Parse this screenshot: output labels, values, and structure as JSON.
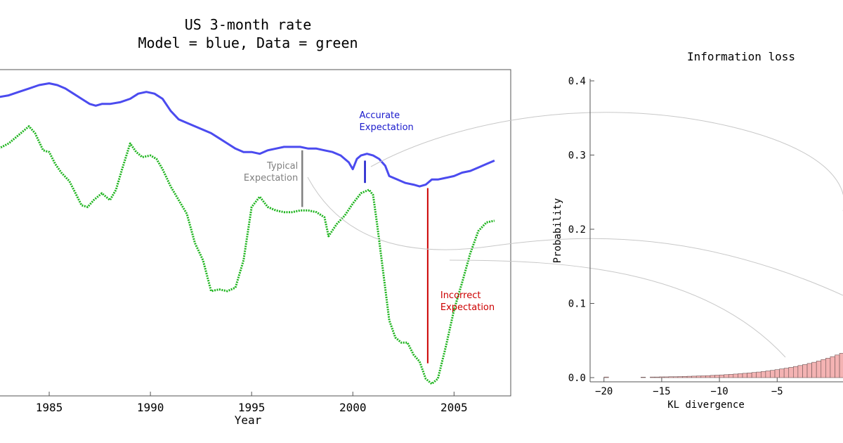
{
  "chart_data": [
    {
      "type": "line",
      "title": "US 3-month rate",
      "subtitle": "Model = blue, Data = green",
      "xlabel": "Year",
      "ylabel": "",
      "xlim": [
        1982.5,
        2007.8
      ],
      "ylim": [
        0,
        9.5
      ],
      "xticks": [
        1985,
        1990,
        1995,
        2000,
        2005
      ],
      "colors": {
        "model": "#4b4bef",
        "data": "#1eb41e",
        "typical": "#808080",
        "accurate": "#1a1acc",
        "incorrect": "#cc0000"
      },
      "series": [
        {
          "key": "model",
          "x": [
            1982.5,
            1983,
            1983.5,
            1984,
            1984.5,
            1985,
            1985.4,
            1985.8,
            1986.2,
            1986.6,
            1987,
            1987.3,
            1987.6,
            1988,
            1988.5,
            1989,
            1989.4,
            1989.8,
            1990.2,
            1990.6,
            1991,
            1991.4,
            1991.8,
            1992.2,
            1992.6,
            1993,
            1993.4,
            1993.8,
            1994.2,
            1994.6,
            1995,
            1995.4,
            1995.8,
            1996.2,
            1996.6,
            1997,
            1997.4,
            1997.8,
            1998.2,
            1998.6,
            1999,
            1999.4,
            1999.8,
            2000,
            2000.2,
            2000.4,
            2000.7,
            2001,
            2001.3,
            2001.6,
            2001.8,
            2002.2,
            2002.6,
            2003,
            2003.3,
            2003.6,
            2003.9,
            2004.2,
            2004.6,
            2005,
            2005.4,
            2005.8,
            2006.2,
            2006.6,
            2007
          ],
          "y": [
            8.7,
            8.75,
            8.85,
            8.95,
            9.05,
            9.1,
            9.05,
            8.95,
            8.8,
            8.65,
            8.5,
            8.45,
            8.5,
            8.5,
            8.55,
            8.65,
            8.8,
            8.85,
            8.8,
            8.65,
            8.3,
            8.05,
            7.95,
            7.85,
            7.75,
            7.65,
            7.5,
            7.35,
            7.2,
            7.1,
            7.1,
            7.05,
            7.15,
            7.2,
            7.25,
            7.25,
            7.25,
            7.2,
            7.2,
            7.15,
            7.1,
            7.0,
            6.8,
            6.6,
            6.9,
            7.0,
            7.05,
            7.0,
            6.9,
            6.7,
            6.4,
            6.3,
            6.2,
            6.15,
            6.1,
            6.15,
            6.3,
            6.3,
            6.35,
            6.4,
            6.5,
            6.55,
            6.65,
            6.75,
            6.85
          ]
        },
        {
          "key": "data",
          "x": [
            1982.5,
            1983,
            1983.5,
            1984,
            1984.3,
            1984.7,
            1985,
            1985.3,
            1985.6,
            1986,
            1986.3,
            1986.6,
            1986.9,
            1987.2,
            1987.6,
            1988,
            1988.3,
            1988.6,
            1989,
            1989.3,
            1989.6,
            1990,
            1990.3,
            1990.6,
            1991,
            1991.4,
            1991.8,
            1992.2,
            1992.6,
            1993,
            1993.4,
            1993.8,
            1994.2,
            1994.6,
            1995,
            1995.4,
            1995.8,
            1996.2,
            1996.6,
            1997,
            1997.4,
            1997.8,
            1998.2,
            1998.6,
            1998.8,
            1999.2,
            1999.6,
            2000,
            2000.4,
            2000.8,
            2001,
            2001.2,
            2001.5,
            2001.8,
            2002.1,
            2002.4,
            2002.7,
            2003,
            2003.3,
            2003.6,
            2003.9,
            2004.2,
            2004.6,
            2005,
            2005.4,
            2005.8,
            2006.2,
            2006.6,
            2007
          ],
          "y": [
            7.2,
            7.35,
            7.6,
            7.85,
            7.65,
            7.15,
            7.1,
            6.75,
            6.5,
            6.25,
            5.9,
            5.55,
            5.5,
            5.7,
            5.9,
            5.7,
            6.0,
            6.6,
            7.35,
            7.1,
            6.95,
            7.0,
            6.9,
            6.6,
            6.1,
            5.7,
            5.3,
            4.45,
            3.95,
            3.05,
            3.1,
            3.05,
            3.15,
            3.95,
            5.5,
            5.8,
            5.5,
            5.4,
            5.35,
            5.35,
            5.4,
            5.4,
            5.35,
            5.2,
            4.65,
            5.0,
            5.25,
            5.6,
            5.9,
            6.0,
            5.85,
            5.0,
            3.6,
            2.2,
            1.7,
            1.55,
            1.55,
            1.2,
            1.0,
            0.5,
            0.35,
            0.5,
            1.45,
            2.5,
            3.3,
            4.15,
            4.8,
            5.05,
            5.1
          ]
        }
      ],
      "annotations": [
        {
          "key": "typical",
          "lines": [
            "Typical",
            "Expectation"
          ],
          "x": 1997.5,
          "y_from": 7.15,
          "y_to": 5.5
        },
        {
          "key": "accurate",
          "lines": [
            "Accurate",
            "Expectation"
          ],
          "x": 2000.6,
          "y_from": 6.85,
          "y_to": 6.2
        },
        {
          "key": "incorrect",
          "lines": [
            "Incorrect",
            "Expectation"
          ],
          "x": 2003.7,
          "y_from": 6.05,
          "y_to": 0.95
        }
      ]
    },
    {
      "type": "bar",
      "title": "Information loss",
      "xlabel": "KL divergence",
      "ylabel": "Probability",
      "xlim": [
        -21.2,
        0.7
      ],
      "ylim": [
        0,
        0.4
      ],
      "xticks": [
        -20,
        -15,
        -10,
        -5
      ],
      "yticks": [
        "0.0",
        "0.1",
        "0.2",
        "0.3",
        "0.4"
      ],
      "colors": {
        "bar_fill": "#f4b3b3",
        "bar_stroke": "#6e5555"
      },
      "bin_width": 0.4,
      "bins_from": -20,
      "values": [
        0.0008,
        0,
        0,
        0,
        0,
        0,
        0,
        0,
        0.0005,
        0,
        0.0008,
        0.0008,
        0.001,
        0.001,
        0.0012,
        0.0012,
        0.0014,
        0.0016,
        0.0018,
        0.002,
        0.0022,
        0.0024,
        0.0026,
        0.003,
        0.0033,
        0.0036,
        0.004,
        0.0044,
        0.0048,
        0.0053,
        0.0058,
        0.0063,
        0.0069,
        0.0075,
        0.0082,
        0.009,
        0.0098,
        0.0107,
        0.0117,
        0.0127,
        0.0138,
        0.015,
        0.0163,
        0.0176,
        0.0191,
        0.0207,
        0.0224,
        0.0243,
        0.0262,
        0.0283,
        0.0305,
        0.0328,
        0.0352,
        0.0376,
        0.04,
        0.0425,
        0.045,
        0.0476,
        0.0502,
        0.0528
      ]
    }
  ]
}
